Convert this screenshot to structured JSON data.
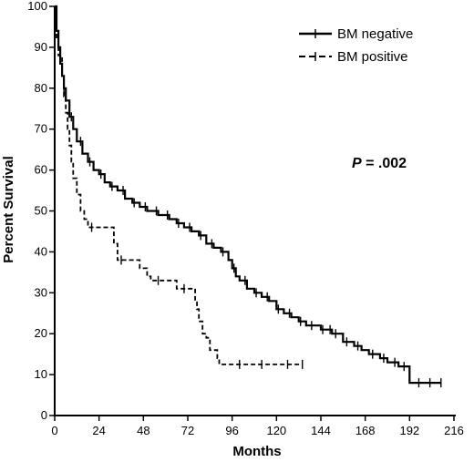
{
  "chart_data": {
    "type": "line",
    "title": "",
    "xlabel": "Months",
    "ylabel": "Percent Survival",
    "xlim": [
      0,
      216
    ],
    "ylim": [
      0,
      100
    ],
    "x_ticks": [
      0,
      24,
      48,
      72,
      96,
      120,
      144,
      168,
      192,
      216
    ],
    "y_ticks": [
      0,
      10,
      20,
      30,
      40,
      50,
      60,
      70,
      80,
      90,
      100
    ],
    "grid": false,
    "legend_position": "top-right",
    "annotation": {
      "p_italic": "P",
      "p_rest": " = .002"
    },
    "series": [
      {
        "name": "BM negative",
        "style": "solid",
        "color": "#000000",
        "steps": [
          [
            0,
            100
          ],
          [
            1,
            94
          ],
          [
            2,
            90
          ],
          [
            3,
            86
          ],
          [
            4,
            83
          ],
          [
            5,
            80
          ],
          [
            6,
            77
          ],
          [
            8,
            73
          ],
          [
            10,
            70
          ],
          [
            12,
            67
          ],
          [
            15,
            64
          ],
          [
            18,
            62
          ],
          [
            21,
            60
          ],
          [
            24,
            59
          ],
          [
            27,
            57
          ],
          [
            30,
            56
          ],
          [
            34,
            55
          ],
          [
            38,
            53
          ],
          [
            42,
            52
          ],
          [
            46,
            51
          ],
          [
            50,
            50
          ],
          [
            56,
            49
          ],
          [
            62,
            48
          ],
          [
            66,
            47
          ],
          [
            70,
            46
          ],
          [
            74,
            45
          ],
          [
            78,
            44
          ],
          [
            82,
            42
          ],
          [
            86,
            41
          ],
          [
            90,
            40
          ],
          [
            94,
            38
          ],
          [
            96,
            36
          ],
          [
            98,
            34
          ],
          [
            100,
            33
          ],
          [
            104,
            31
          ],
          [
            108,
            30
          ],
          [
            112,
            29
          ],
          [
            116,
            28
          ],
          [
            120,
            26
          ],
          [
            124,
            25
          ],
          [
            128,
            24
          ],
          [
            132,
            23
          ],
          [
            136,
            22
          ],
          [
            140,
            22
          ],
          [
            144,
            21
          ],
          [
            150,
            20
          ],
          [
            156,
            18
          ],
          [
            162,
            17
          ],
          [
            166,
            16
          ],
          [
            170,
            15
          ],
          [
            176,
            14
          ],
          [
            180,
            13
          ],
          [
            186,
            12
          ],
          [
            190,
            12
          ],
          [
            192,
            8
          ],
          [
            202,
            8
          ],
          [
            209,
            8
          ]
        ],
        "censor_x": [
          5,
          9,
          14,
          19,
          25,
          31,
          37,
          43,
          49,
          55,
          61,
          67,
          73,
          79,
          85,
          91,
          97,
          103,
          109,
          115,
          121,
          127,
          133,
          139,
          145,
          149,
          152,
          158,
          164,
          172,
          178,
          184,
          189,
          197,
          203,
          209
        ]
      },
      {
        "name": "BM positive",
        "style": "dashed",
        "color": "#000000",
        "steps": [
          [
            0,
            100
          ],
          [
            1,
            92
          ],
          [
            2,
            88
          ],
          [
            4,
            83
          ],
          [
            5,
            78
          ],
          [
            6,
            74
          ],
          [
            7,
            70
          ],
          [
            8,
            66
          ],
          [
            9,
            62
          ],
          [
            10,
            58
          ],
          [
            12,
            54
          ],
          [
            14,
            50
          ],
          [
            16,
            48
          ],
          [
            18,
            46
          ],
          [
            30,
            46
          ],
          [
            32,
            42
          ],
          [
            34,
            38
          ],
          [
            42,
            38
          ],
          [
            46,
            36
          ],
          [
            50,
            34
          ],
          [
            52,
            33
          ],
          [
            62,
            33
          ],
          [
            66,
            31
          ],
          [
            74,
            31
          ],
          [
            76,
            28
          ],
          [
            77,
            26
          ],
          [
            78,
            23
          ],
          [
            80,
            20
          ],
          [
            82,
            19
          ],
          [
            84,
            16
          ],
          [
            88,
            14
          ],
          [
            89,
            12.5
          ],
          [
            134,
            12.5
          ]
        ],
        "censor_x": [
          20,
          36,
          56,
          70,
          100,
          112,
          126,
          134
        ]
      }
    ]
  }
}
